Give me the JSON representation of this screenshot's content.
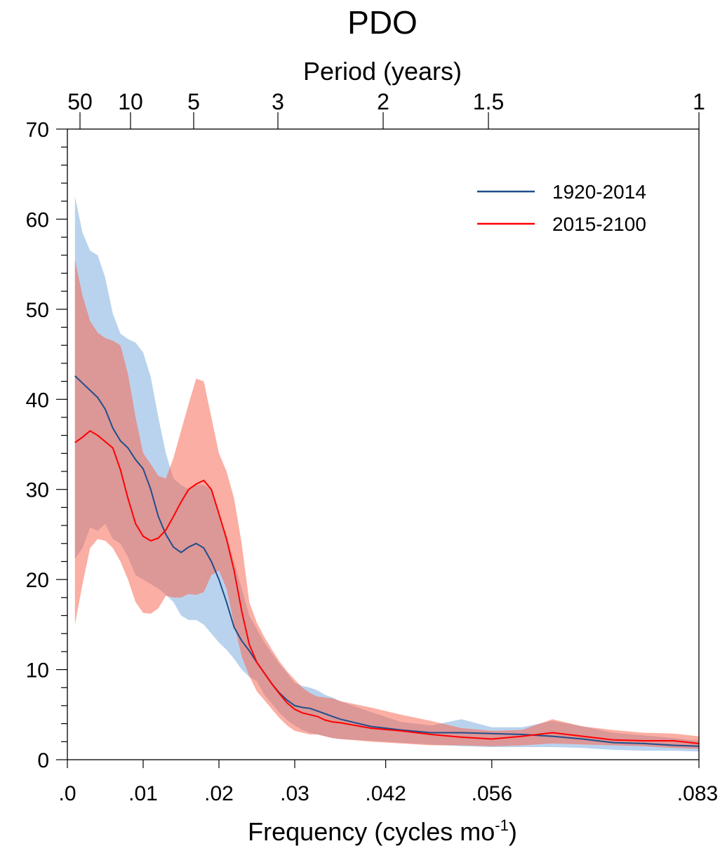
{
  "chart_data": {
    "type": "line",
    "title": "PDO",
    "top_axis_label": "Period (years)",
    "xlabel_main": "Frequency (cycles mo",
    "xlabel_sup": "-1",
    "xlabel_close": ")",
    "ylabel": "",
    "xlim": [
      0,
      0.08333
    ],
    "ylim": [
      0,
      70
    ],
    "x_ticks": [
      {
        "value": 0.0,
        "label": ".0"
      },
      {
        "value": 0.01,
        "label": ".01"
      },
      {
        "value": 0.02,
        "label": ".02"
      },
      {
        "value": 0.03,
        "label": ".03"
      },
      {
        "value": 0.042,
        "label": ".042"
      },
      {
        "value": 0.056,
        "label": ".056"
      },
      {
        "value": 0.08333,
        "label": ".083"
      }
    ],
    "top_ticks": [
      {
        "period_years": 50,
        "label": "50"
      },
      {
        "period_years": 10,
        "label": "10"
      },
      {
        "period_years": 5,
        "label": "5"
      },
      {
        "period_years": 3,
        "label": "3"
      },
      {
        "period_years": 2,
        "label": "2"
      },
      {
        "period_years": 1.5,
        "label": "1.5"
      },
      {
        "period_years": 1,
        "label": "1"
      }
    ],
    "y_ticks": [
      {
        "value": 0,
        "label": "0"
      },
      {
        "value": 10,
        "label": "10"
      },
      {
        "value": 20,
        "label": "20"
      },
      {
        "value": 30,
        "label": "30"
      },
      {
        "value": 40,
        "label": "40"
      },
      {
        "value": 50,
        "label": "50"
      },
      {
        "value": 60,
        "label": "60"
      },
      {
        "value": 70,
        "label": "70"
      }
    ],
    "y_minor_step": 2,
    "grid": false,
    "legend_position": "top-right",
    "x": [
      0.001,
      0.002,
      0.003,
      0.004,
      0.005,
      0.006,
      0.007,
      0.008,
      0.009,
      0.01,
      0.011,
      0.012,
      0.013,
      0.014,
      0.015,
      0.016,
      0.017,
      0.018,
      0.019,
      0.02,
      0.021,
      0.022,
      0.023,
      0.024,
      0.025,
      0.026,
      0.027,
      0.028,
      0.029,
      0.03,
      0.031,
      0.032,
      0.033,
      0.034,
      0.035,
      0.036,
      0.04,
      0.044,
      0.048,
      0.052,
      0.056,
      0.06,
      0.064,
      0.068,
      0.072,
      0.076,
      0.08,
      0.0833
    ],
    "series": [
      {
        "name": "1920-2014",
        "color": "#1f4e8c",
        "band_color": "#b9d3ee",
        "values": [
          42.6,
          41.8,
          41.0,
          40.2,
          38.9,
          36.8,
          35.4,
          34.6,
          33.3,
          32.3,
          30,
          27,
          25,
          23.6,
          23.0,
          23.6,
          24.0,
          23.5,
          22,
          20,
          17.5,
          14.7,
          13.2,
          12.1,
          10.8,
          9.6,
          8.4,
          7.4,
          6.6,
          6.0,
          5.8,
          5.7,
          5.4,
          5.1,
          4.8,
          4.5,
          3.7,
          3.3,
          3.0,
          3.0,
          2.9,
          2.8,
          2.6,
          2.3,
          1.9,
          1.8,
          1.6,
          1.5
        ],
        "upper": [
          62.5,
          58.5,
          56.5,
          56,
          53.5,
          49.5,
          47.3,
          46.7,
          46.3,
          45.2,
          42.5,
          38,
          34,
          31.2,
          30.5,
          30,
          30.5,
          30.5,
          30,
          27,
          25,
          22,
          19,
          16,
          14.5,
          13,
          11.8,
          10.6,
          9.6,
          8.5,
          8.2,
          8.0,
          7.7,
          7.2,
          6.9,
          6.5,
          5.3,
          4.2,
          3.8,
          4.5,
          3.6,
          3.6,
          4.3,
          3.7,
          3.0,
          2.7,
          2.4,
          2.1
        ],
        "lower": [
          22.3,
          23.5,
          25.8,
          25.4,
          26.2,
          24.5,
          24,
          22.5,
          20.5,
          20,
          19.5,
          19,
          18.3,
          17.5,
          16,
          15.5,
          15.5,
          15,
          14,
          13,
          12.2,
          11.2,
          10,
          9.2,
          8.7,
          7.2,
          6.2,
          5.2,
          4.4,
          3.8,
          3.3,
          3.0,
          2.8,
          2.6,
          2.4,
          2.3,
          2.1,
          1.9,
          1.7,
          1.5,
          1.4,
          1.4,
          1.4,
          1.3,
          1.1,
          1.0,
          1.0,
          0.9
        ]
      },
      {
        "name": "2015-2100",
        "color": "#ff0000",
        "band_color": "#fbaea3",
        "values": [
          35.2,
          35.8,
          36.5,
          36.0,
          35.3,
          34.6,
          32.2,
          29,
          26.2,
          24.8,
          24.3,
          24.6,
          25.5,
          27.0,
          28.6,
          30.0,
          30.6,
          31.0,
          30.0,
          27.3,
          24.5,
          21,
          16.5,
          12.8,
          10.8,
          9.6,
          8.4,
          7.3,
          6.3,
          5.6,
          5.2,
          5.0,
          4.8,
          4.4,
          4.2,
          4.1,
          3.5,
          3.2,
          2.8,
          2.5,
          2.3,
          2.6,
          3.0,
          2.6,
          2.2,
          2.1,
          2.1,
          1.8
        ],
        "upper": [
          55.5,
          51.5,
          48.7,
          47.4,
          46.8,
          46.5,
          46,
          42.8,
          38,
          34,
          32.8,
          31.5,
          31.2,
          33.5,
          36.5,
          39.5,
          42.3,
          42,
          38,
          34,
          32,
          29,
          24,
          17.5,
          15.2,
          13.6,
          12.2,
          10.9,
          9.8,
          8.9,
          8.0,
          7.4,
          7.0,
          6.9,
          6.8,
          6.5,
          5.8,
          5.0,
          4.3,
          3.5,
          3.2,
          3.3,
          4.5,
          3.7,
          3.3,
          3.0,
          2.9,
          2.6
        ],
        "lower": [
          15,
          19.5,
          23.5,
          24.5,
          24.3,
          23.5,
          22,
          20,
          17.5,
          16.3,
          16.2,
          16.8,
          18.2,
          18,
          18,
          18.4,
          18.3,
          18.6,
          20.5,
          21,
          19,
          15,
          11.5,
          9.3,
          7.6,
          6.6,
          5.6,
          4.6,
          3.8,
          3.2,
          3.0,
          2.8,
          2.8,
          2.6,
          2.4,
          2.3,
          2.0,
          1.8,
          1.6,
          1.6,
          1.5,
          1.6,
          1.8,
          1.7,
          1.6,
          1.5,
          1.3,
          1.2
        ]
      }
    ],
    "overlap_color": "#dc9797"
  }
}
